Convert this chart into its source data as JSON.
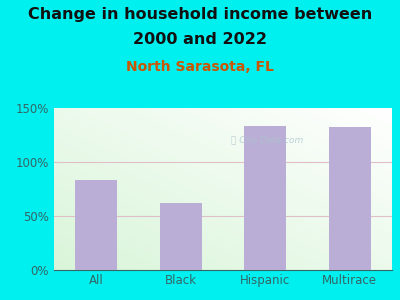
{
  "title_line1": "Change in household income between",
  "title_line2": "2000 and 2022",
  "subtitle": "North Sarasota, FL",
  "categories": [
    "All",
    "Black",
    "Hispanic",
    "Multirace"
  ],
  "values": [
    83,
    62,
    133,
    132
  ],
  "bar_color": "#bbaed6",
  "background_color": "#00efef",
  "plot_bg_topleft": "#cce8cc",
  "plot_bg_bottomright": "#f4fff4",
  "title_color": "#111111",
  "subtitle_color": "#cc5500",
  "tick_color": "#336666",
  "grid_color": "#e0c0c8",
  "ylim": [
    0,
    150
  ],
  "yticks": [
    0,
    50,
    100,
    150
  ],
  "title_fontsize": 11.5,
  "subtitle_fontsize": 10
}
